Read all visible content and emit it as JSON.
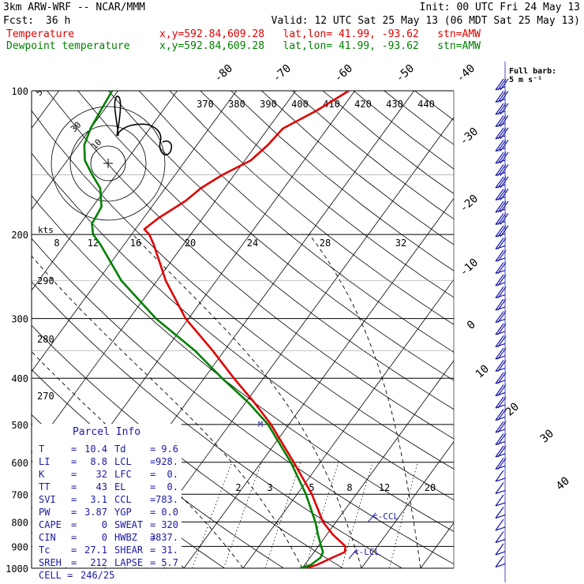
{
  "header": {
    "model": "3km ARW-WRF -- NCAR/MMM",
    "init": "Init: 00 UTC Fri 24 May 13",
    "fcst_label": "Fcst:",
    "fcst_value": "36 h",
    "valid": "Valid: 12 UTC Sat 25 May 13 (06 MDT Sat 25 May 13)",
    "temp_label": "Temperature",
    "dew_label": "Dewpoint temperature",
    "loc": "x,y=592.84,609.28   lat,lon= 41.99, -93.62   stn=AMW",
    "colors": {
      "temperature": "#e00000",
      "dewpoint": "#008000",
      "barbs": "#1a1aa6"
    }
  },
  "chart_data": {
    "type": "line",
    "subtype": "skew-t log-p sounding",
    "pressure_levels": [
      "100",
      "200",
      "300",
      "400",
      "500",
      "600",
      "700",
      "800",
      "900",
      "1000"
    ],
    "pressure_values": [
      100,
      200,
      300,
      400,
      500,
      600,
      700,
      800,
      900,
      1000
    ],
    "ylim": [
      1000,
      100
    ],
    "y_scale": "log",
    "isotherm_labels": [
      "-80",
      "-70",
      "-60",
      "-50",
      "-40",
      "-30",
      "-20",
      "-10",
      "0",
      "10",
      "20",
      "30",
      "40"
    ],
    "theta_labels": [
      "370",
      "380",
      "390",
      "400",
      "410",
      "420",
      "430",
      "440"
    ],
    "mixing_ratio_labels": [
      "2",
      "3",
      "5",
      "8",
      "12",
      "20"
    ],
    "thetae_left_labels": [
      "290",
      "280",
      "270"
    ],
    "hodo_speed_labels": [
      "8",
      "12",
      "16",
      "20",
      "24",
      "28",
      "32"
    ],
    "hodo_units": "kts",
    "hodo_ring_labels": [
      "50",
      "30",
      "10"
    ],
    "barb_legend": "Full barb:\n5 m s⁻¹",
    "barb_legend_line1": "Full barb:",
    "barb_legend_line2": "5 m s⁻¹",
    "lcl_label": "<-LCL",
    "ccl_label": "<-CCL",
    "marker_label": "M",
    "series": [
      {
        "name": "Temperature",
        "color": "#e00000",
        "p": [
          1000,
          985,
          950,
          925,
          900,
          880,
          850,
          800,
          700,
          600,
          500,
          450,
          400,
          350,
          300,
          250,
          210,
          200,
          195,
          185,
          170,
          160,
          150,
          140,
          130,
          120,
          110,
          100
        ],
        "t": [
          10.4,
          12.0,
          13.8,
          15.2,
          14.6,
          13.2,
          11.0,
          7.8,
          2.5,
          -4.5,
          -13.0,
          -18.5,
          -25.0,
          -32.0,
          -40.5,
          -48.5,
          -55.0,
          -57.0,
          -58.5,
          -57.5,
          -55.0,
          -54.0,
          -52.0,
          -49.0,
          -48.0,
          -47.5,
          -44.0,
          -41.0
        ]
      },
      {
        "name": "Dewpoint temperature",
        "color": "#008000",
        "p": [
          1000,
          985,
          950,
          925,
          900,
          850,
          800,
          700,
          600,
          500,
          450,
          400,
          350,
          300,
          250,
          210,
          200,
          190,
          175,
          160,
          150,
          140,
          130,
          120,
          110,
          100
        ],
        "t": [
          9.6,
          11.0,
          11.8,
          11.5,
          10.5,
          8.5,
          6.5,
          1.5,
          -5.0,
          -13.5,
          -19.5,
          -27.0,
          -35.0,
          -45.5,
          -56.0,
          -64.0,
          -66.5,
          -68.0,
          -68.5,
          -71.0,
          -74.0,
          -77.0,
          -79.0,
          -80.0,
          -80.5,
          -81.0
        ]
      }
    ],
    "parcel_info": {
      "title": "Parcel Info",
      "rows": [
        [
          "T",
          "10.4",
          "Td",
          "9.6"
        ],
        [
          "LI",
          "8.8",
          "LCL",
          "928."
        ],
        [
          "K",
          "32",
          "LFC",
          "0."
        ],
        [
          "TT",
          "43",
          "EL",
          "0."
        ],
        [
          "SVI",
          "3.1",
          "CCL",
          "783."
        ],
        [
          "PW",
          "3.87",
          "YGP",
          "0.0"
        ],
        [
          "CAPE",
          "0",
          "SWEAT",
          "320"
        ],
        [
          "CIN",
          "0",
          "HWBZ",
          "3837."
        ],
        [
          "Tc",
          "27.1",
          "SHEAR",
          "31."
        ],
        [
          "SREH",
          "212",
          "LAPSE",
          "5.7"
        ]
      ],
      "cell_label": "CELL =",
      "cell_value": "246/25"
    }
  }
}
